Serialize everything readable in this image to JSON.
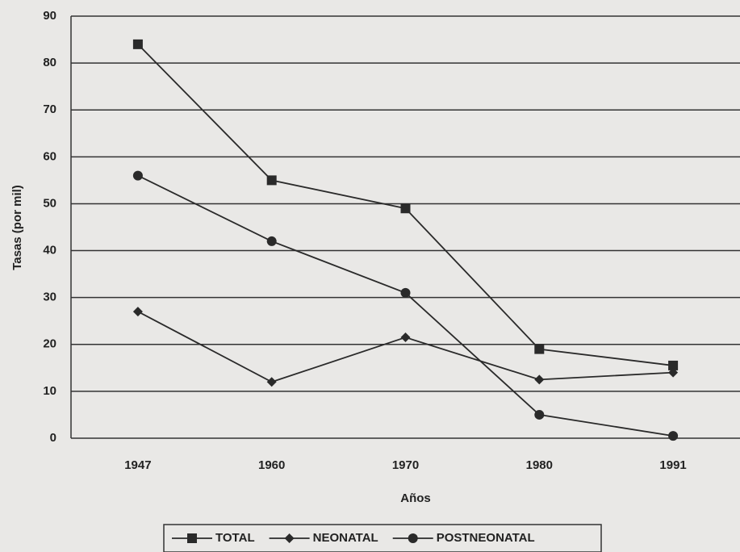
{
  "chart_data": {
    "type": "line",
    "categories": [
      "1947",
      "1960",
      "1970",
      "1980",
      "1991"
    ],
    "series": [
      {
        "name": "TOTAL",
        "color": "#2a2a2a",
        "marker": "square",
        "values": [
          84,
          55,
          49,
          19,
          15.5
        ]
      },
      {
        "name": "NEONATAL",
        "color": "#2a2a2a",
        "marker": "diamond",
        "values": [
          27,
          12,
          21.5,
          12.5,
          14
        ]
      },
      {
        "name": "POSTNEONATAL",
        "color": "#2a2a2a",
        "marker": "circle",
        "values": [
          56,
          42,
          31,
          5,
          0.5
        ]
      }
    ],
    "xlabel": "Años",
    "ylabel": "Tasas (por mil)",
    "ylim": [
      0,
      90
    ],
    "yticks": [
      0,
      10,
      20,
      30,
      40,
      50,
      60,
      70,
      80,
      90
    ],
    "grid": true,
    "legend": "bottom"
  }
}
